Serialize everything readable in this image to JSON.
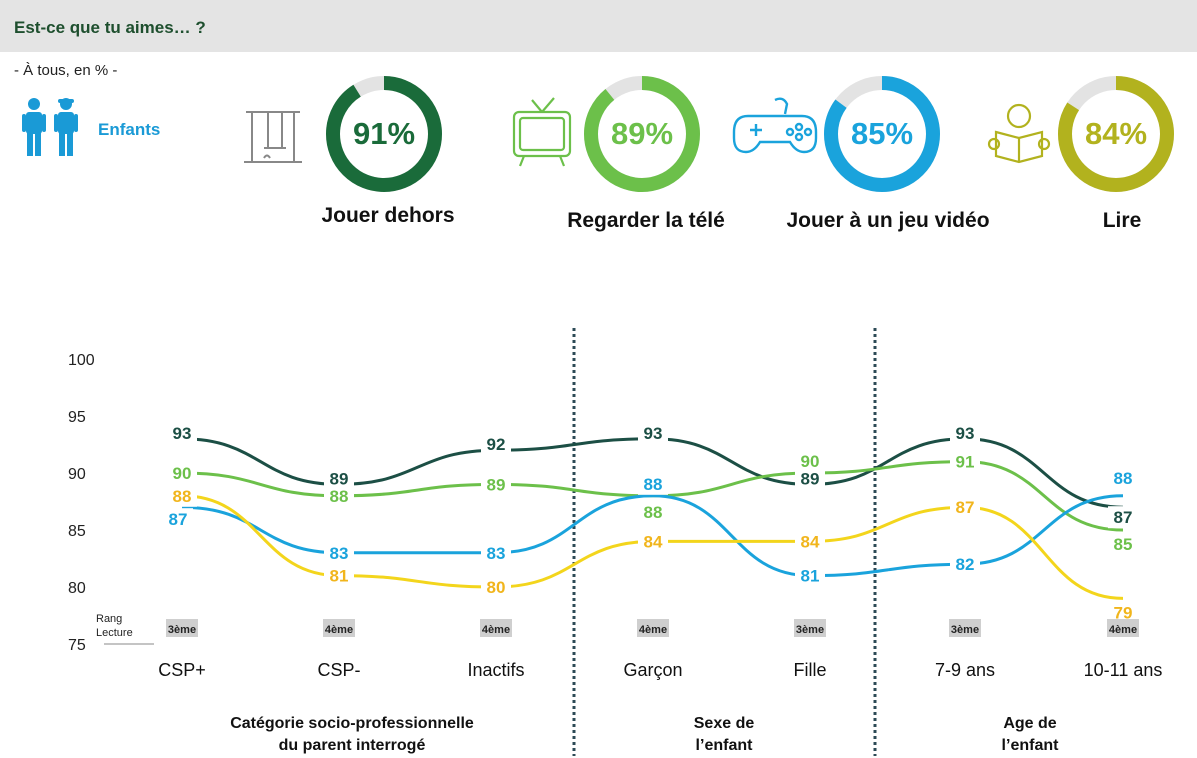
{
  "header": {
    "title": "Est-ce que tu aimes… ?"
  },
  "subtitle": "- À tous, en % -",
  "audience": {
    "label": "Enfants",
    "icon": "children-icon"
  },
  "kpis": [
    {
      "label": "Jouer dehors",
      "value": "91%",
      "fraction": 0.91,
      "color": "#1a6b3a",
      "icon": "swing-icon"
    },
    {
      "label": "Regarder la télé",
      "value": "89%",
      "fraction": 0.89,
      "color": "#6cc04a",
      "icon": "tv-icon"
    },
    {
      "label": "Jouer à un jeu vidéo",
      "value": "85%",
      "fraction": 0.85,
      "color": "#1aa3dc",
      "icon": "gamepad-icon"
    },
    {
      "label": "Lire",
      "value": "84%",
      "fraction": 0.84,
      "color": "#b2b21e",
      "icon": "reading-icon"
    }
  ],
  "chart_data": {
    "type": "line",
    "categories": [
      "CSP+",
      "CSP-",
      "Inactifs",
      "Garçon",
      "Fille",
      "7-9 ans",
      "10-11 ans"
    ],
    "ylim": [
      75,
      100
    ],
    "yticks": [
      75,
      80,
      85,
      90,
      95,
      100
    ],
    "series": [
      {
        "values": [
          93,
          89,
          92,
          93,
          89,
          93,
          87
        ],
        "color": "#1c4f45"
      },
      {
        "values": [
          90,
          88,
          89,
          88,
          90,
          91,
          85
        ],
        "color": "#6cc04a"
      },
      {
        "values": [
          87,
          83,
          83,
          88,
          81,
          82,
          88
        ],
        "color": "#1aa3dc"
      },
      {
        "values": [
          88,
          81,
          80,
          84,
          84,
          87,
          79
        ],
        "color": "#f3d51c"
      }
    ],
    "rank_label": "Rang Lecture",
    "ranks": [
      "3ème",
      "4ème",
      "4ème",
      "4ème",
      "3ème",
      "3ème",
      "4ème"
    ],
    "groups": [
      {
        "label": "Catégorie socio-professionnelle du parent interrogé"
      },
      {
        "label": "Sexe de l’enfant"
      },
      {
        "label": "Age de l’enfant"
      }
    ],
    "grid": false
  }
}
